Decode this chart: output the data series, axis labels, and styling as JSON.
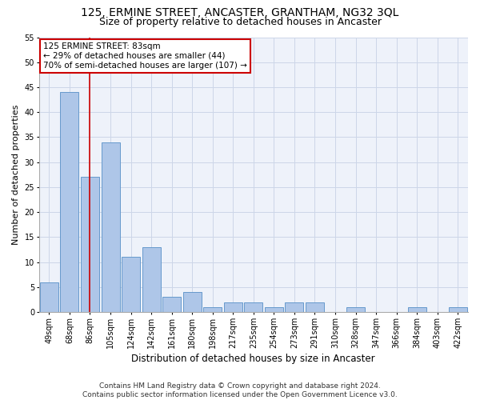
{
  "title": "125, ERMINE STREET, ANCASTER, GRANTHAM, NG32 3QL",
  "subtitle": "Size of property relative to detached houses in Ancaster",
  "xlabel": "Distribution of detached houses by size in Ancaster",
  "ylabel": "Number of detached properties",
  "categories": [
    "49sqm",
    "68sqm",
    "86sqm",
    "105sqm",
    "124sqm",
    "142sqm",
    "161sqm",
    "180sqm",
    "198sqm",
    "217sqm",
    "235sqm",
    "254sqm",
    "273sqm",
    "291sqm",
    "310sqm",
    "328sqm",
    "347sqm",
    "366sqm",
    "384sqm",
    "403sqm",
    "422sqm"
  ],
  "values": [
    6,
    44,
    27,
    34,
    11,
    13,
    3,
    4,
    1,
    2,
    2,
    1,
    2,
    2,
    0,
    1,
    0,
    0,
    1,
    0,
    1
  ],
  "bar_color": "#aec6e8",
  "bar_edge_color": "#6699cc",
  "vline_x": 2.0,
  "vline_color": "#cc0000",
  "annotation_text": "125 ERMINE STREET: 83sqm\n← 29% of detached houses are smaller (44)\n70% of semi-detached houses are larger (107) →",
  "annotation_box_color": "#ffffff",
  "annotation_box_edge": "#cc0000",
  "ylim": [
    0,
    55
  ],
  "yticks": [
    0,
    5,
    10,
    15,
    20,
    25,
    30,
    35,
    40,
    45,
    50,
    55
  ],
  "grid_color": "#ccd6e8",
  "bg_color": "#eef2fa",
  "footer": "Contains HM Land Registry data © Crown copyright and database right 2024.\nContains public sector information licensed under the Open Government Licence v3.0.",
  "title_fontsize": 10,
  "subtitle_fontsize": 9,
  "xlabel_fontsize": 8.5,
  "ylabel_fontsize": 8,
  "tick_fontsize": 7,
  "annotation_fontsize": 7.5,
  "footer_fontsize": 6.5
}
